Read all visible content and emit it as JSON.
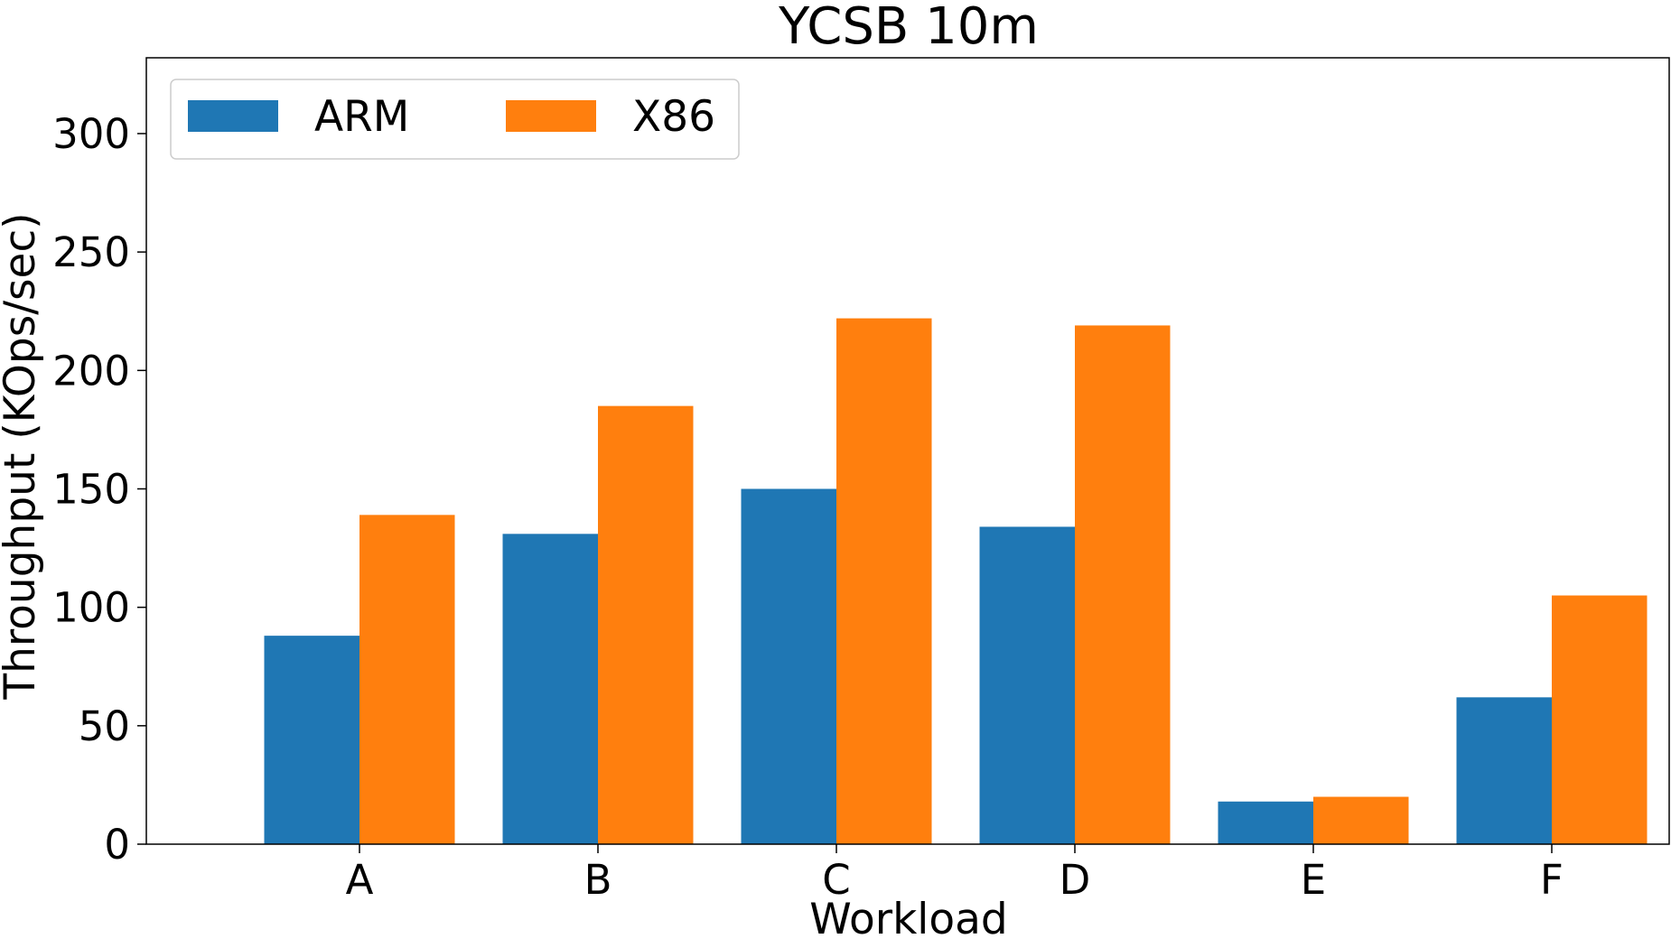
{
  "chart_data": {
    "type": "bar",
    "title": "YCSB 10m",
    "xlabel": "Workload",
    "ylabel": "Throughput (KOps/sec)",
    "categories": [
      "A",
      "B",
      "C",
      "D",
      "E",
      "F"
    ],
    "series": [
      {
        "name": "ARM",
        "color": "#1f77b4",
        "values": [
          88,
          131,
          150,
          134,
          18,
          62
        ]
      },
      {
        "name": "X86",
        "color": "#ff7f0e",
        "values": [
          139,
          185,
          222,
          219,
          20,
          105
        ]
      }
    ],
    "ylim": [
      0,
      332
    ],
    "yticks": [
      0,
      50,
      100,
      150,
      200,
      250,
      300
    ],
    "legend": "top-left",
    "grid": false
  }
}
